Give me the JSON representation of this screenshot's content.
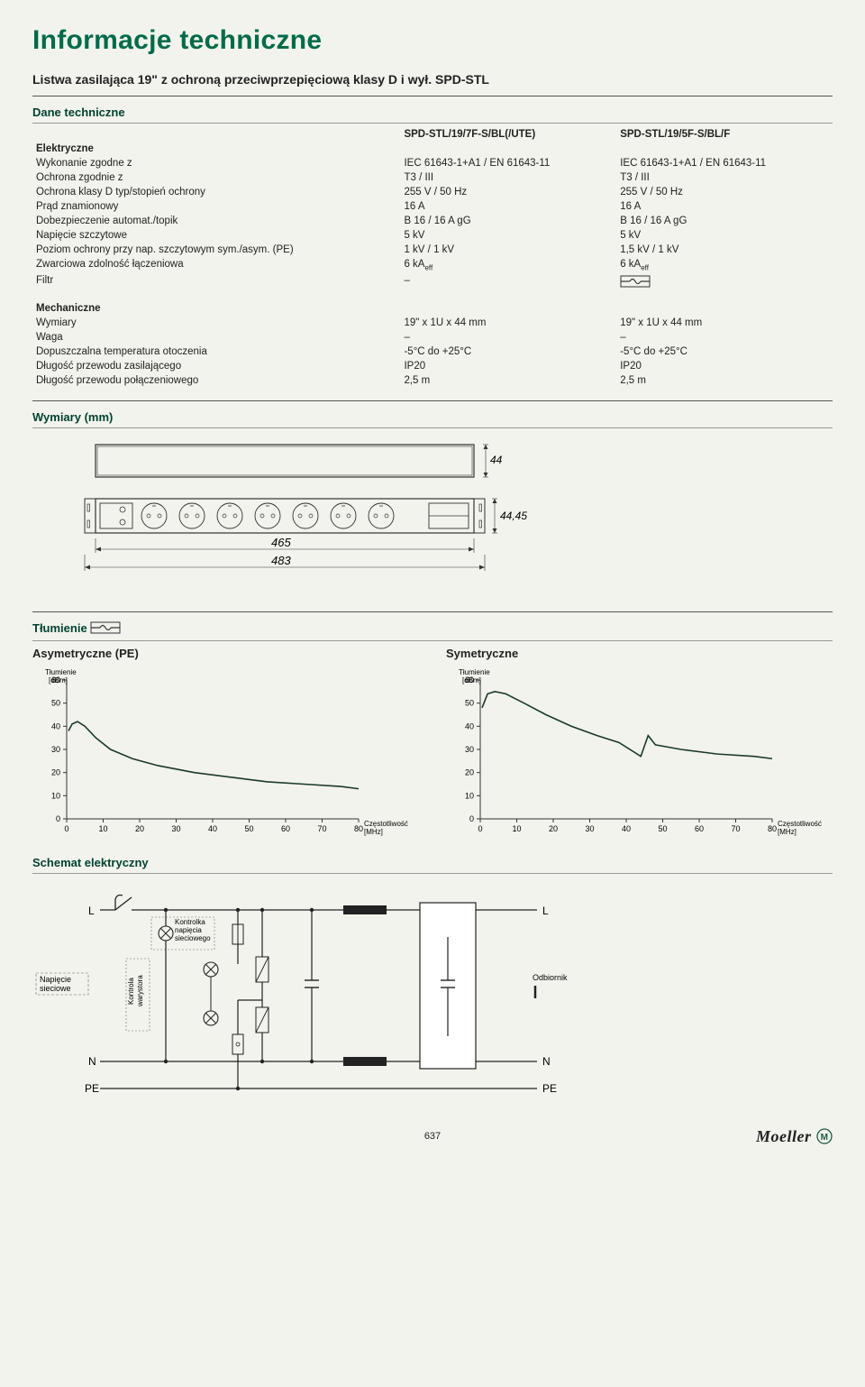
{
  "page_title": "Informacje techniczne",
  "subheading": "Listwa zasilająca 19\" z ochroną przeciwprzepięciową klasy D i wył. SPD-STL",
  "section1": "Dane techniczne",
  "columns": {
    "col1": "SPD-STL/19/7F-S/BL(/UTE)",
    "col2": "SPD-STL/19/5F-S/BL/F"
  },
  "group_electrical": "Elektryczne",
  "spec_rows_electrical": [
    {
      "label": "Wykonanie zgodne z",
      "c1": "IEC 61643-1+A1 / EN 61643-11",
      "c2": "IEC 61643-1+A1 / EN 61643-11"
    },
    {
      "label": "Ochrona zgodnie z",
      "c1": "T3 / III",
      "c2": "T3 / III"
    },
    {
      "label": "Ochrona klasy D typ/stopień ochrony",
      "c1": "255 V / 50 Hz",
      "c2": "255 V / 50 Hz"
    },
    {
      "label": "Prąd znamionowy",
      "c1": "16 A",
      "c2": "16 A"
    },
    {
      "label": "Dobezpieczenie automat./topik",
      "c1": "B 16 / 16 A gG",
      "c2": "B 16 / 16 A gG"
    },
    {
      "label": "Napięcie szczytowe",
      "c1": "5 kV",
      "c2": "5 kV"
    },
    {
      "label": "Poziom ochrony przy nap. szczytowym    sym./asym. (PE)",
      "c1": "1 kV / 1 kV",
      "c2": "1,5 kV / 1 kV"
    },
    {
      "label": "Zwarciowa zdolność łączeniowa",
      "c1": "6 kAeff",
      "c2": "6 kAeff"
    },
    {
      "label": "Filtr",
      "c1": "–",
      "c2": "__FILTER_ICON__"
    }
  ],
  "group_mechanical": "Mechaniczne",
  "spec_rows_mechanical": [
    {
      "label": "Wymiary",
      "c1": "19\" x 1U x 44 mm",
      "c2": "19\" x 1U x 44 mm"
    },
    {
      "label": "Waga",
      "c1": "–",
      "c2": "–"
    },
    {
      "label": "Dopuszczalna temperatura otoczenia",
      "c1": "-5°C do +25°C",
      "c2": "-5°C do +25°C"
    },
    {
      "label": "Długość przewodu zasilającego",
      "c1": "IP20",
      "c2": "IP20"
    },
    {
      "label": "Długość przewodu połączeniowego",
      "c1": "2,5 m",
      "c2": "2,5 m"
    }
  ],
  "section_dim": "Wymiary (mm)",
  "dim": {
    "h1": "44",
    "h2": "44,45",
    "w_inner": "465",
    "w_outer": "483"
  },
  "section_atten": "Tłumienie",
  "charts": {
    "asym": {
      "title": "Asymetryczne (PE)",
      "ylabel": "Tłumienie\n[dBm]",
      "xlabel": "Częstotliwość\n[MHz]",
      "xlim": [
        0,
        80
      ],
      "ylim": [
        0,
        60
      ],
      "xtick_step": 10,
      "ytick_step": 10,
      "series": [
        [
          0.5,
          38
        ],
        [
          1.5,
          41
        ],
        [
          3,
          42
        ],
        [
          5,
          40
        ],
        [
          8,
          35
        ],
        [
          12,
          30
        ],
        [
          18,
          26
        ],
        [
          25,
          23
        ],
        [
          35,
          20
        ],
        [
          45,
          18
        ],
        [
          55,
          16
        ],
        [
          65,
          15
        ],
        [
          75,
          14
        ],
        [
          80,
          13
        ]
      ],
      "line_color": "#1a3a2a",
      "axis_color": "#333333",
      "background_color": "#f2f3ec"
    },
    "sym": {
      "title": "Symetryczne",
      "ylabel": "Tłumienie\n[dBm]",
      "xlabel": "Częstotliwość\n[MHz]",
      "xlim": [
        0,
        80
      ],
      "ylim": [
        0,
        60
      ],
      "xtick_step": 10,
      "ytick_step": 10,
      "series": [
        [
          0.5,
          48
        ],
        [
          2,
          54
        ],
        [
          4,
          55
        ],
        [
          7,
          54
        ],
        [
          12,
          50
        ],
        [
          18,
          45
        ],
        [
          25,
          40
        ],
        [
          32,
          36
        ],
        [
          38,
          33
        ],
        [
          44,
          27
        ],
        [
          46,
          36
        ],
        [
          48,
          32
        ],
        [
          55,
          30
        ],
        [
          65,
          28
        ],
        [
          75,
          27
        ],
        [
          80,
          26
        ]
      ],
      "line_color": "#1a3a2a",
      "axis_color": "#333333",
      "background_color": "#f2f3ec"
    }
  },
  "section_schem": "Schemat elektryczny",
  "schem": {
    "labels": {
      "L": "L",
      "N": "N",
      "PE": "PE",
      "ctrl_u": "Kontrolka\nnapięcia\nsieciowego",
      "ctrl_var": "Kontrola\nwarystora",
      "mains": "Napięcie\nsieciowe",
      "load": "Odbiornik"
    },
    "line_color": "#222222",
    "background_color": "#f2f3ec"
  },
  "page_number": "637",
  "logo_text": "Moeller"
}
